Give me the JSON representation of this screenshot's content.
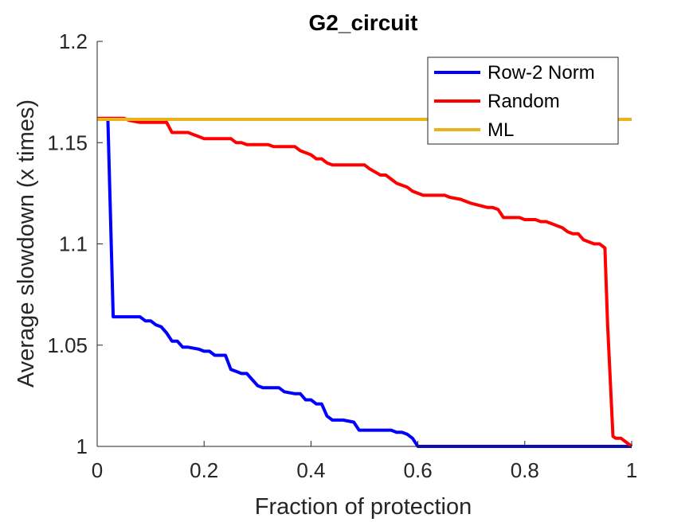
{
  "chart_data": {
    "type": "line",
    "title": "G2_circuit",
    "xlabel": "Fraction of protection",
    "ylabel": "Average slowdown (x times)",
    "xlim": [
      0,
      1
    ],
    "ylim": [
      1,
      1.2
    ],
    "xticks": [
      0,
      0.2,
      0.4,
      0.6,
      0.8,
      1
    ],
    "xtick_labels": [
      "0",
      "0.2",
      "0.4",
      "0.6",
      "0.8",
      "1"
    ],
    "yticks": [
      1,
      1.05,
      1.1,
      1.15,
      1.2
    ],
    "ytick_labels": [
      "1",
      "1.05",
      "1.1",
      "1.15",
      "1.2"
    ],
    "grid": false,
    "legend_position": "top-right",
    "series": [
      {
        "name": "Row-2 Norm",
        "color": "#0000ff",
        "x": [
          0.02,
          0.03,
          0.08,
          0.09,
          0.1,
          0.11,
          0.12,
          0.13,
          0.14,
          0.15,
          0.16,
          0.17,
          0.19,
          0.2,
          0.21,
          0.22,
          0.24,
          0.25,
          0.26,
          0.27,
          0.28,
          0.29,
          0.3,
          0.31,
          0.34,
          0.35,
          0.37,
          0.38,
          0.39,
          0.4,
          0.41,
          0.42,
          0.43,
          0.44,
          0.45,
          0.46,
          0.48,
          0.49,
          0.5,
          0.53,
          0.55,
          0.56,
          0.57,
          0.58,
          0.59,
          0.6,
          0.61,
          0.65,
          0.66,
          0.75,
          0.76,
          1.0
        ],
        "y": [
          1.162,
          1.064,
          1.064,
          1.062,
          1.062,
          1.06,
          1.059,
          1.056,
          1.052,
          1.052,
          1.049,
          1.049,
          1.048,
          1.047,
          1.047,
          1.045,
          1.045,
          1.038,
          1.037,
          1.036,
          1.036,
          1.033,
          1.03,
          1.029,
          1.029,
          1.027,
          1.026,
          1.026,
          1.023,
          1.023,
          1.021,
          1.021,
          1.015,
          1.013,
          1.013,
          1.013,
          1.012,
          1.008,
          1.008,
          1.008,
          1.008,
          1.007,
          1.007,
          1.006,
          1.004,
          1.0,
          1.0,
          1.0,
          1.0,
          1.0,
          1.0,
          1.0
        ]
      },
      {
        "name": "Random",
        "color": "#ff0000",
        "x": [
          0.0,
          0.05,
          0.06,
          0.08,
          0.13,
          0.14,
          0.17,
          0.18,
          0.19,
          0.2,
          0.21,
          0.25,
          0.26,
          0.27,
          0.28,
          0.29,
          0.32,
          0.33,
          0.37,
          0.38,
          0.4,
          0.41,
          0.42,
          0.43,
          0.44,
          0.45,
          0.47,
          0.5,
          0.51,
          0.53,
          0.54,
          0.55,
          0.56,
          0.57,
          0.58,
          0.59,
          0.6,
          0.61,
          0.65,
          0.66,
          0.68,
          0.69,
          0.7,
          0.73,
          0.74,
          0.75,
          0.76,
          0.79,
          0.8,
          0.82,
          0.83,
          0.84,
          0.85,
          0.86,
          0.87,
          0.88,
          0.89,
          0.9,
          0.91,
          0.92,
          0.93,
          0.94,
          0.95,
          0.955,
          0.965,
          0.97,
          0.98,
          0.99,
          1.0
        ],
        "y": [
          1.162,
          1.162,
          1.161,
          1.16,
          1.16,
          1.155,
          1.155,
          1.154,
          1.153,
          1.152,
          1.152,
          1.152,
          1.15,
          1.15,
          1.149,
          1.149,
          1.149,
          1.148,
          1.148,
          1.146,
          1.144,
          1.142,
          1.142,
          1.14,
          1.139,
          1.139,
          1.139,
          1.139,
          1.137,
          1.134,
          1.134,
          1.132,
          1.13,
          1.129,
          1.128,
          1.126,
          1.125,
          1.124,
          1.124,
          1.123,
          1.122,
          1.121,
          1.12,
          1.118,
          1.118,
          1.117,
          1.113,
          1.113,
          1.112,
          1.112,
          1.111,
          1.111,
          1.11,
          1.109,
          1.108,
          1.106,
          1.105,
          1.105,
          1.102,
          1.101,
          1.1,
          1.1,
          1.098,
          1.06,
          1.005,
          1.004,
          1.004,
          1.002,
          1.0
        ]
      },
      {
        "name": "ML",
        "color": "#edb120",
        "x": [
          0.0,
          1.0
        ],
        "y": [
          1.1615,
          1.1615
        ]
      }
    ]
  }
}
